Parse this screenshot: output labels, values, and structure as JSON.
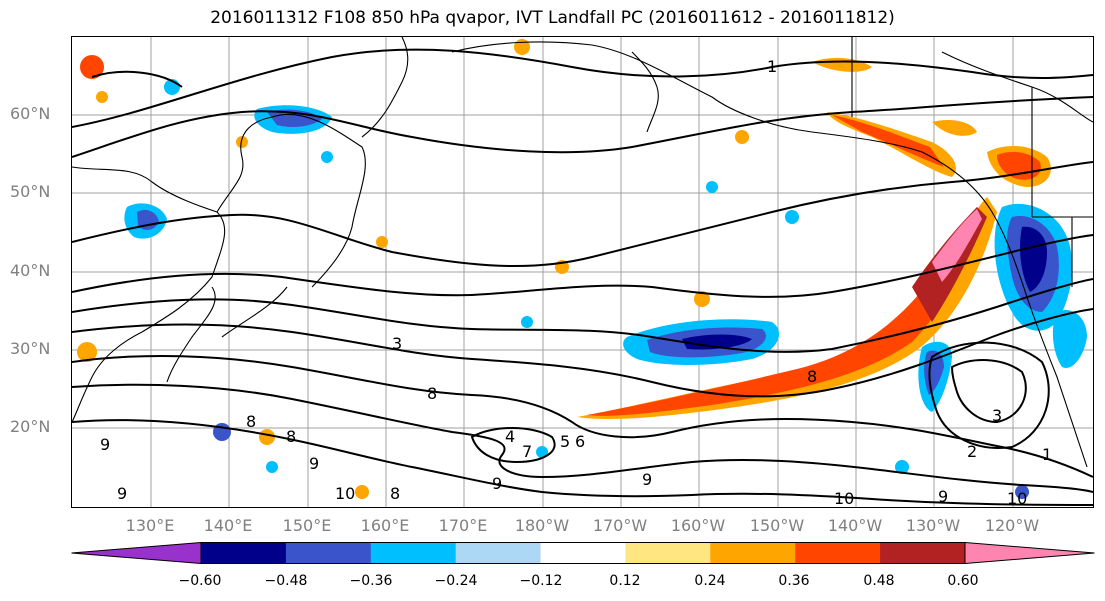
{
  "title": "2016011312 F108 850 hPa qvapor, IVT Landfall PC (2016011612 - 2016011812)",
  "lat_labels": [
    "60°N",
    "50°N",
    "40°N",
    "30°N",
    "20°N"
  ],
  "lon_labels": [
    "130°E",
    "140°E",
    "150°E",
    "160°E",
    "170°E",
    "180°W",
    "170°W",
    "160°W",
    "150°W",
    "140°W",
    "130°W",
    "120°W"
  ],
  "contour_labels": [
    "1",
    "3",
    "3",
    "8",
    "8",
    "9",
    "9",
    "10",
    "9",
    "4",
    "5",
    "6",
    "7",
    "8",
    "9",
    "9",
    "8",
    "10",
    "1",
    "2",
    "8",
    "9",
    "10"
  ],
  "colorbar": {
    "ticks": [
      "−0.60",
      "−0.48",
      "−0.36",
      "−0.24",
      "−0.12",
      "0.12",
      "0.24",
      "0.36",
      "0.48",
      "0.60"
    ],
    "colors": [
      "#9932cc",
      "#00008b",
      "#3a55cc",
      "#00bfff",
      "#add8f5",
      "#ffffff",
      "#ffe680",
      "#ffa500",
      "#ff4500",
      "#b22222",
      "#ff85b0"
    ]
  },
  "colors": {
    "negative_dark": "#00008b",
    "negative_mid": "#3a55cc",
    "negative_light": "#00bfff",
    "negative_pale": "#add8f5",
    "positive_pale": "#ffe680",
    "positive_mid": "#ffa500",
    "positive_strong": "#ff4500",
    "positive_dark": "#b22222",
    "positive_max": "#ff85b0"
  }
}
